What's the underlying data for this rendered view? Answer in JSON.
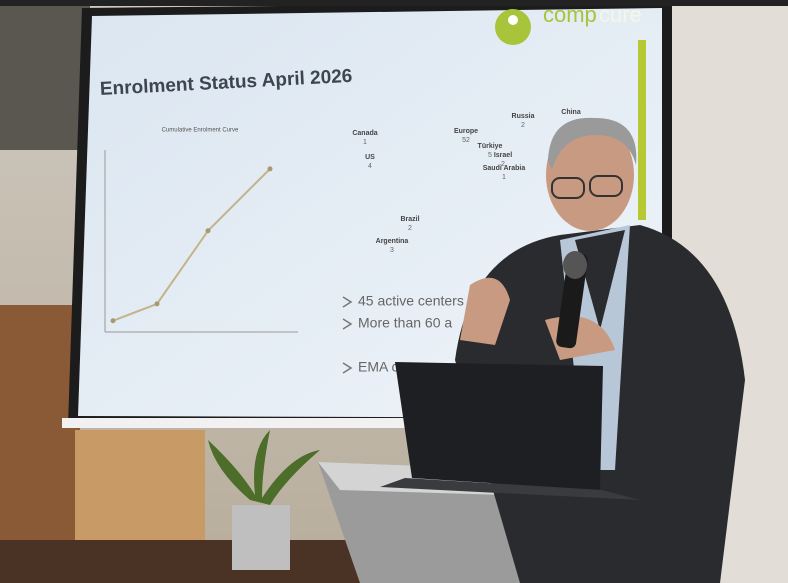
{
  "slide": {
    "logo": {
      "left": "comp",
      "right": "cure"
    },
    "title": "Enrolment Status April 2026",
    "curve": {
      "title": "Cumulative Enrolment Curve",
      "values": [
        10,
        25,
        90,
        145
      ],
      "ylim": [
        0,
        160
      ]
    },
    "countries": [
      {
        "name": "Canada",
        "count": "1"
      },
      {
        "name": "US",
        "count": "4"
      },
      {
        "name": "Europe",
        "count": "52"
      },
      {
        "name": "Russia",
        "count": "2"
      },
      {
        "name": "China",
        "count": ""
      },
      {
        "name": "Türkiye",
        "count": "5"
      },
      {
        "name": "Israel",
        "count": "2"
      },
      {
        "name": "Saudi Arabia",
        "count": "1"
      },
      {
        "name": "Brazil",
        "count": "2"
      },
      {
        "name": "Argentina",
        "count": "3"
      }
    ],
    "bullets": [
      "45 active centers",
      "More than 60 a",
      "EMA c"
    ]
  }
}
